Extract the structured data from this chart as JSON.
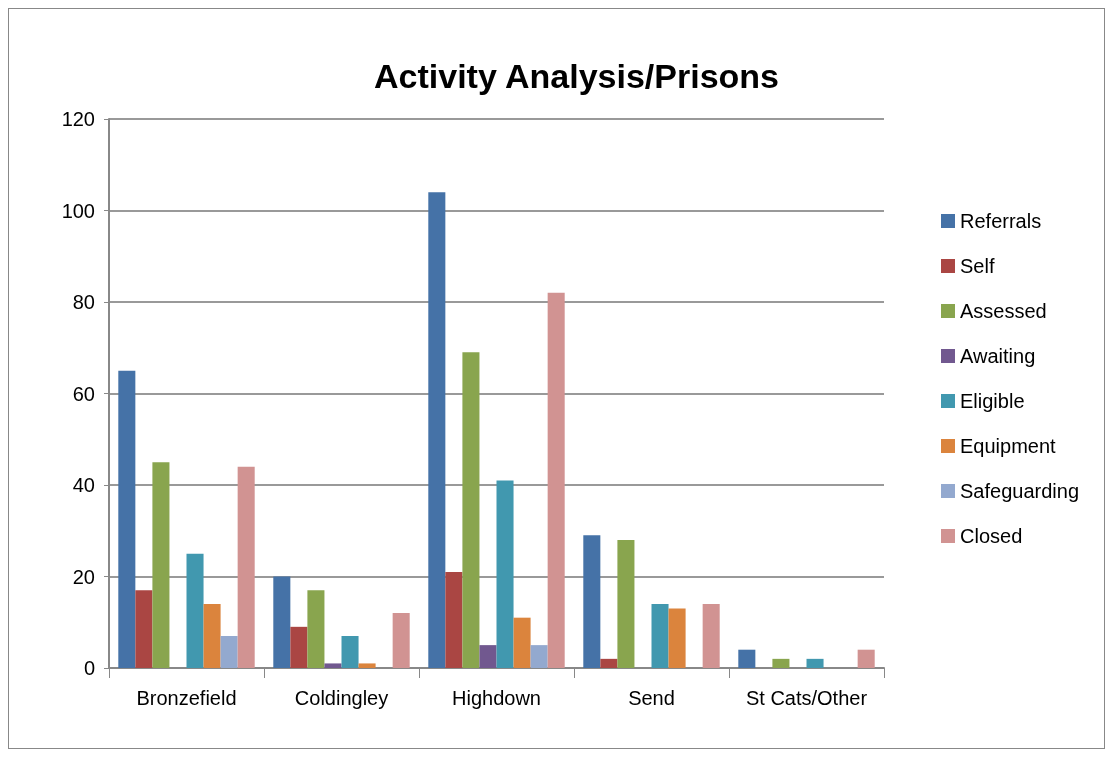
{
  "chart_data": {
    "type": "bar",
    "title": "Activity Analysis/Prisons",
    "categories": [
      "Bronzefield",
      "Coldingley",
      "Highdown",
      "Send",
      "St Cats/Other"
    ],
    "series": [
      {
        "name": "Referrals",
        "color": "#4572a7",
        "values": [
          65,
          20,
          104,
          29,
          4
        ]
      },
      {
        "name": "Self",
        "color": "#aa4643",
        "values": [
          17,
          9,
          21,
          2,
          0
        ]
      },
      {
        "name": "Assessed",
        "color": "#89a54e",
        "values": [
          45,
          17,
          69,
          28,
          2
        ]
      },
      {
        "name": "Awaiting",
        "color": "#71588f",
        "values": [
          0,
          1,
          5,
          0,
          0
        ]
      },
      {
        "name": "Eligible",
        "color": "#4198af",
        "values": [
          25,
          7,
          41,
          14,
          2
        ]
      },
      {
        "name": "Equipment",
        "color": "#db843d",
        "values": [
          14,
          1,
          11,
          13,
          0
        ]
      },
      {
        "name": "Safeguarding",
        "color": "#93a9cf",
        "values": [
          7,
          0,
          5,
          0,
          0
        ]
      },
      {
        "name": "Closed",
        "color": "#d19392",
        "values": [
          44,
          12,
          82,
          14,
          4
        ]
      }
    ],
    "ylim": [
      0,
      120
    ],
    "yticks": [
      0,
      20,
      40,
      60,
      80,
      100,
      120
    ],
    "grid": "y",
    "legend": "right"
  }
}
